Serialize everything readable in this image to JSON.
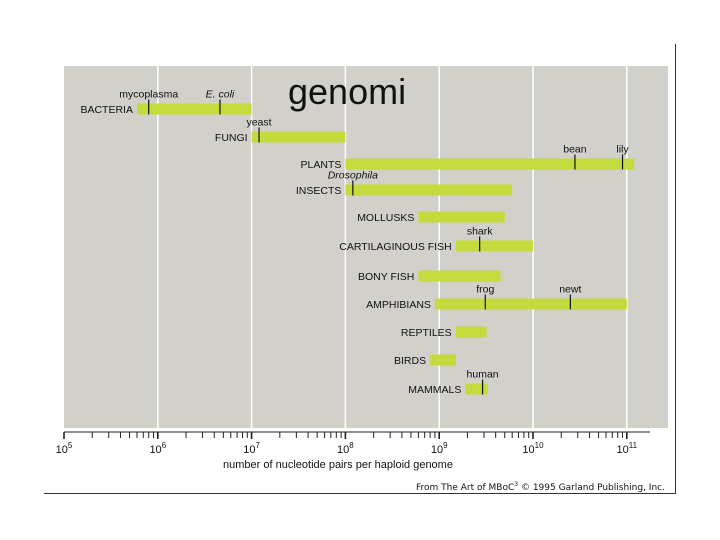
{
  "slide_title": "genomi",
  "credit": {
    "prefix": "From The Art of MBoC",
    "sup": "3",
    "suffix": " © 1995 Garland Publishing, Inc."
  },
  "colors": {
    "panel": "#d2d0cb",
    "bar": "#c3db3c",
    "grid": "#ffffff",
    "text": "#111111"
  },
  "chart_data": {
    "type": "bar",
    "orientation": "horizontal",
    "scale": "log10",
    "xlim": [
      100000,
      100000000000
    ],
    "xlabel": "number of nucleotide pairs per haploid genome",
    "x_ticks": [
      {
        "base": "10",
        "exp": "5"
      },
      {
        "base": "10",
        "exp": "6"
      },
      {
        "base": "10",
        "exp": "7"
      },
      {
        "base": "10",
        "exp": "8"
      },
      {
        "base": "10",
        "exp": "9"
      },
      {
        "base": "10",
        "exp": "10"
      },
      {
        "base": "10",
        "exp": "11"
      }
    ],
    "grid": true,
    "categories": [
      {
        "label": "BACTERIA",
        "min": 600000,
        "max": 10000000
      },
      {
        "label": "FUNGI",
        "min": 10000000,
        "max": 100000000
      },
      {
        "label": "PLANTS",
        "min": 100000000,
        "max": 120000000000
      },
      {
        "label": "INSECTS",
        "min": 100000000,
        "max": 6000000000
      },
      {
        "label": "MOLLUSKS",
        "min": 600000000,
        "max": 5000000000
      },
      {
        "label": "CARTILAGINOUS FISH",
        "min": 1500000000,
        "max": 10000000000
      },
      {
        "label": "BONY FISH",
        "min": 600000000,
        "max": 4500000000
      },
      {
        "label": "AMPHIBIANS",
        "min": 900000000,
        "max": 100000000000
      },
      {
        "label": "REPTILES",
        "min": 1500000000,
        "max": 3200000000
      },
      {
        "label": "BIRDS",
        "min": 800000000,
        "max": 1500000000
      },
      {
        "label": "MAMMALS",
        "min": 1900000000,
        "max": 3300000000
      }
    ],
    "markers": [
      {
        "label": "mycoplasma",
        "italic": false,
        "row": 0,
        "value": 800000
      },
      {
        "label": "E. coli",
        "italic": true,
        "row": 0,
        "value": 4600000
      },
      {
        "label": "yeast",
        "italic": false,
        "row": 1,
        "value": 12000000
      },
      {
        "label": "bean",
        "italic": false,
        "row": 2,
        "value": 28000000000
      },
      {
        "label": "lily",
        "italic": false,
        "row": 2,
        "value": 90000000000
      },
      {
        "label": "Drosophila",
        "italic": true,
        "row": 3,
        "value": 120000000
      },
      {
        "label": "shark",
        "italic": false,
        "row": 5,
        "value": 2700000000
      },
      {
        "label": "frog",
        "italic": false,
        "row": 7,
        "value": 3100000000
      },
      {
        "label": "newt",
        "italic": false,
        "row": 7,
        "value": 25000000000
      },
      {
        "label": "human",
        "italic": false,
        "row": 10,
        "value": 2900000000
      }
    ]
  }
}
